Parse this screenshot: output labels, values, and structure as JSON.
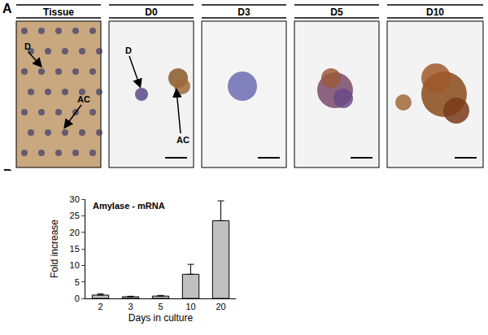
{
  "panel_a": {
    "label": "A",
    "images": [
      {
        "title": "Tissue",
        "annotations": [
          "D",
          "AC"
        ]
      },
      {
        "title": "D0",
        "annotations": [
          "D",
          "AC"
        ]
      },
      {
        "title": "D3"
      },
      {
        "title": "D5"
      },
      {
        "title": "D10"
      }
    ]
  },
  "panel_b": {
    "label": "B"
  },
  "chart_data": {
    "type": "bar",
    "title": "Amylase - mRNA",
    "x_label": "Days in culture",
    "y_label": "Fold increase",
    "categories": [
      "2",
      "3",
      "5",
      "10",
      "20"
    ],
    "values": [
      1.0,
      0.5,
      0.7,
      7.3,
      23.5
    ],
    "errors": [
      0.4,
      0.15,
      0.2,
      3.0,
      6.0
    ],
    "color": "#c0c0c0",
    "ylim": [
      0,
      30
    ],
    "yticks": [
      0,
      5,
      10,
      15,
      20,
      25,
      30
    ],
    "grid": false
  }
}
